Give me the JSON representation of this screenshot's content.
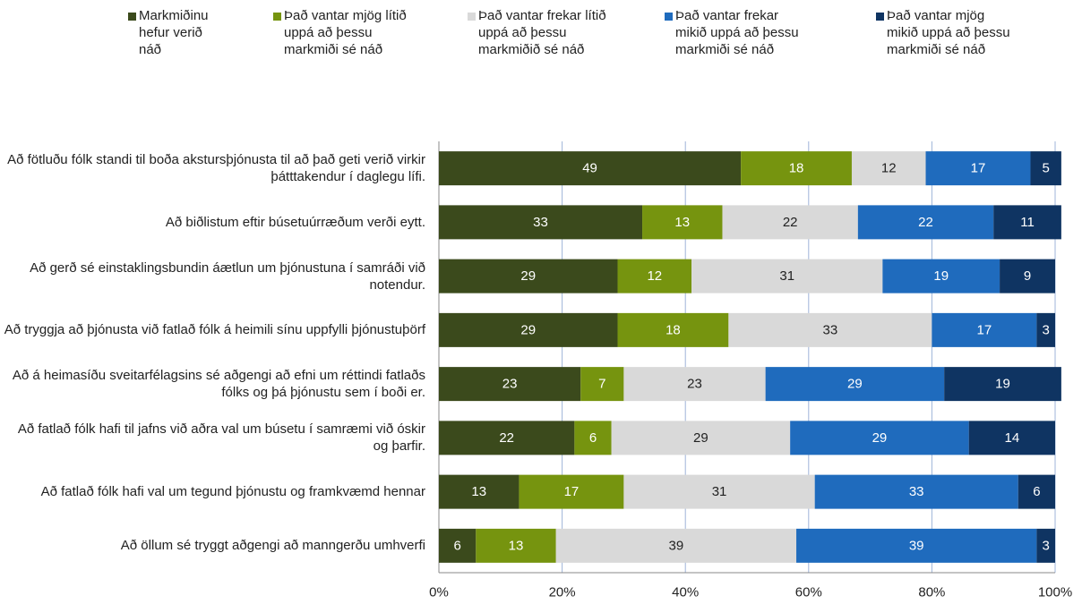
{
  "chart_data": {
    "type": "stacked_barh",
    "categories": [
      "Að fötluðu fólk standi til boða akstursþjónusta til að það geti verið virkir þátttakendur í daglegu lífi.",
      "Að biðlistum eftir búsetuúrræðum verði eytt.",
      "Að gerð sé einstaklingsbundin áætlun um þjónustuna í samráði við notendur.",
      "Að tryggja að þjónusta við fatlað fólk á heimili sínu uppfylli þjónustuþörf",
      "Að á heimasíðu sveitarfélagsins sé aðgengi að efni um réttindi fatlaðs fólks og þá þjónustu sem í boði er.",
      "Að fatlað fólk hafi til jafns við aðra val um búsetu í samræmi við óskir og þarfir.",
      "Að fatlað fólk hafi val um tegund þjónustu og framkvæmd hennar",
      "Að öllum sé tryggt aðgengi að manngerðu umhverfi"
    ],
    "series": [
      {
        "name": "Markmiðinu hefur verið náð",
        "color": "#3b4a1c",
        "values": [
          49,
          33,
          29,
          29,
          23,
          22,
          13,
          6
        ]
      },
      {
        "name": "Það vantar mjög lítið uppá að þessu markmiði sé náð",
        "color": "#76940f",
        "values": [
          18,
          13,
          12,
          18,
          7,
          6,
          17,
          13
        ]
      },
      {
        "name": "Það vantar frekar lítið uppá að þessu markmiðið sé náð",
        "color": "#d9d9d9",
        "values": [
          12,
          22,
          31,
          33,
          23,
          29,
          31,
          39
        ]
      },
      {
        "name": "Það vantar frekar mikið uppá að þessu markmiði sé náð",
        "color": "#1f6bbd",
        "values": [
          17,
          22,
          19,
          17,
          29,
          29,
          33,
          39
        ]
      },
      {
        "name": "Það vantar mjög mikið uppá að þessu markmiði sé náð",
        "color": "#0f3462",
        "values": [
          5,
          11,
          9,
          3,
          19,
          14,
          6,
          3
        ]
      }
    ],
    "xlim": [
      0,
      100
    ],
    "xticks": [
      {
        "value": 0,
        "label": "0%"
      },
      {
        "value": 20,
        "label": "20%"
      },
      {
        "value": 40,
        "label": "40%"
      },
      {
        "value": 60,
        "label": "60%"
      },
      {
        "value": 80,
        "label": "80%"
      },
      {
        "value": 100,
        "label": "100%"
      }
    ],
    "grid": true,
    "legend": "top"
  }
}
